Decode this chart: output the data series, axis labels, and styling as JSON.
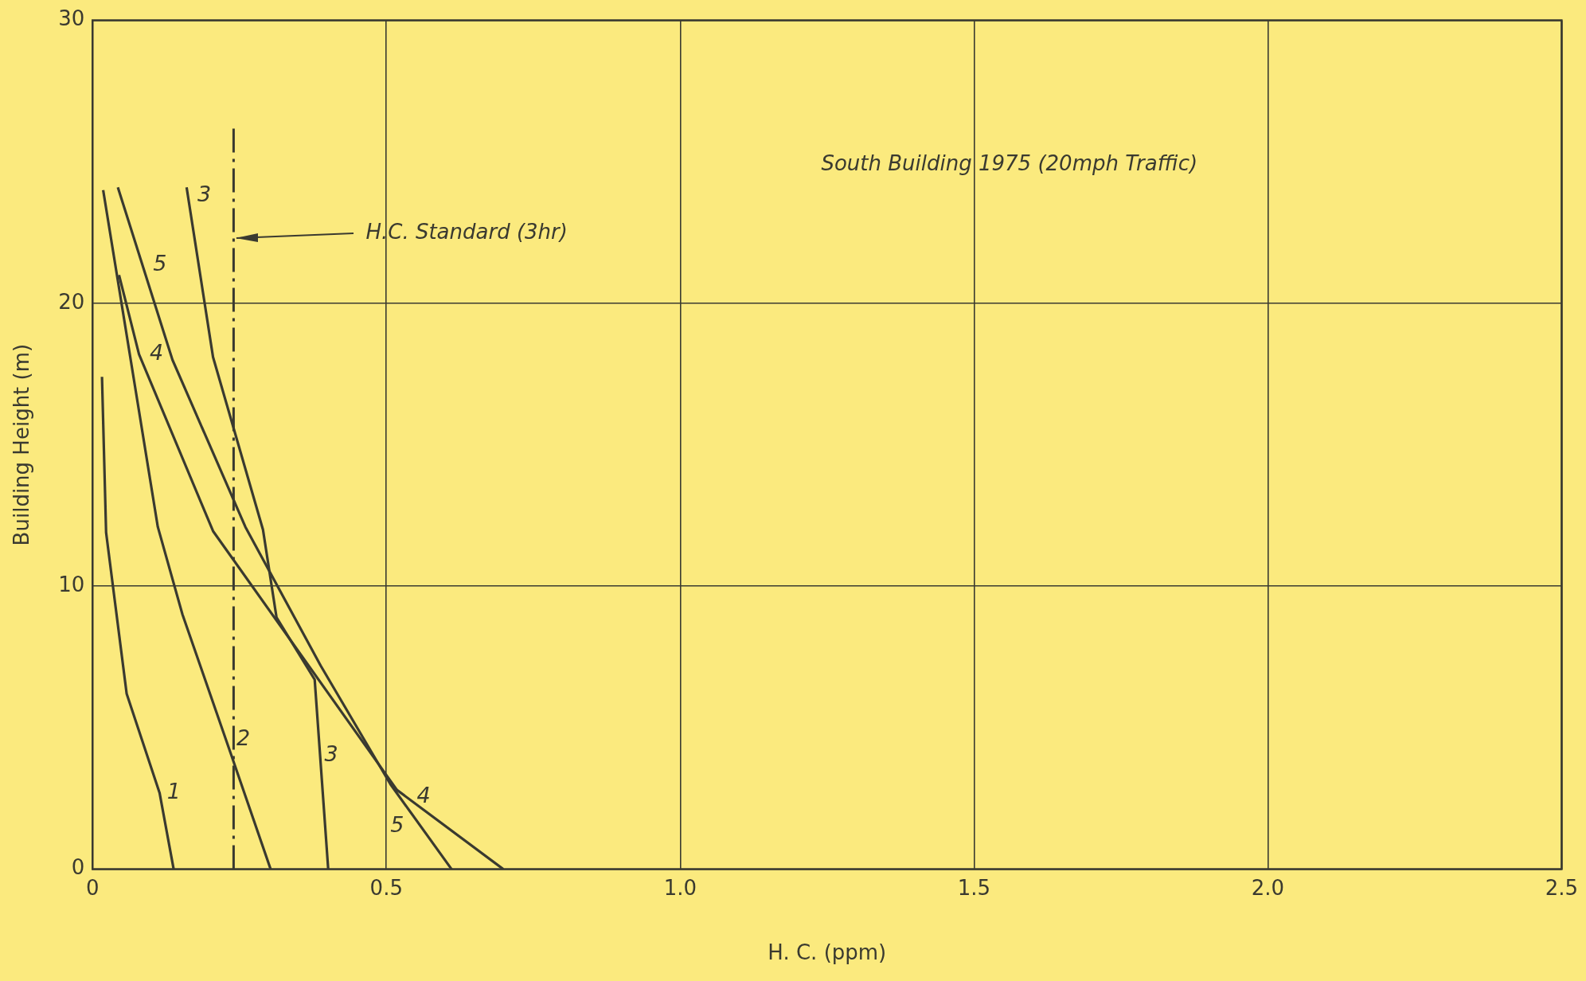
{
  "chart_data": {
    "type": "line",
    "xlabel": "H. C. (ppm)",
    "ylabel": "Building Height (m)",
    "xlim": [
      0,
      2.5
    ],
    "xticks": [
      0,
      {
        "value": 0.5,
        "label": "0.5"
      },
      {
        "value": 1,
        "label": "1.0"
      },
      {
        "value": 1.5,
        "label": "1.5"
      },
      {
        "value": 2,
        "label": "2.0"
      },
      {
        "value": 2.5,
        "label": "2.5"
      }
    ],
    "ylim": [
      0,
      30
    ],
    "yticks": [
      0,
      10,
      20,
      30
    ],
    "grid": true,
    "legend": false,
    "marker": "none",
    "line_style": "solid",
    "series": [
      {
        "name": "1",
        "color": "#3a3a30",
        "x": [
          0.138,
          0.114,
          0.058,
          0.023,
          0.016
        ],
        "values": [
          0,
          2.7,
          6.2,
          11.9,
          17.4
        ]
      },
      {
        "name": "2",
        "color": "#3a3a30",
        "x": [
          0.303,
          0.235,
          0.153,
          0.111,
          0.018
        ],
        "values": [
          0,
          4.1,
          9.0,
          12.1,
          24.0
        ]
      },
      {
        "name": "3",
        "color": "#3a3a30",
        "x": [
          0.401,
          0.378,
          0.313,
          0.29,
          0.205,
          0.16
        ],
        "values": [
          0,
          6.7,
          8.9,
          12.0,
          18.1,
          24.1
        ]
      },
      {
        "name": "4",
        "color": "#3a3a30",
        "x": [
          0.699,
          0.518,
          0.205,
          0.079,
          0.045
        ],
        "values": [
          0,
          2.8,
          11.95,
          18.2,
          21.0
        ]
      },
      {
        "name": "5",
        "color": "#3a3a30",
        "x": [
          0.611,
          0.507,
          0.388,
          0.26,
          0.136,
          0.043
        ],
        "values": [
          0,
          3.0,
          7.2,
          12.1,
          18.0,
          24.1
        ]
      }
    ],
    "ref_lines": [
      {
        "axis": "x",
        "value": 0.24,
        "label": "H.C. Standard (3hr)",
        "color": "#3a3a30",
        "line_style": "dashdot"
      }
    ],
    "annotations": [
      "South Building 1975 (20mph Traffic)"
    ]
  }
}
